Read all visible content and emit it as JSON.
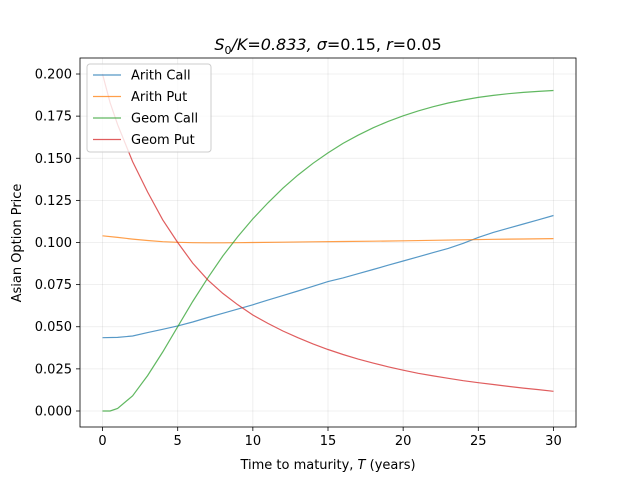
{
  "chart_data": {
    "type": "line",
    "title_parts": {
      "s": "S",
      "sub0": "0",
      "ratio": "/K=0.833, ",
      "sigma": "σ",
      "sigma_val": "=0.15, ",
      "r": "r",
      "r_val": "=0.05"
    },
    "xlabel_parts": {
      "text": "Time to maturity, ",
      "var": "T",
      "unit": " (years)"
    },
    "ylabel": "Asian Option Price",
    "xlim": [
      -1.5,
      31.5
    ],
    "ylim": [
      -0.0095,
      0.2095
    ],
    "x_ticks": [
      0,
      5,
      10,
      15,
      20,
      25,
      30
    ],
    "x_tick_labels": [
      "0",
      "5",
      "10",
      "15",
      "20",
      "25",
      "30"
    ],
    "y_ticks": [
      0.0,
      0.025,
      0.05,
      0.075,
      0.1,
      0.125,
      0.15,
      0.175,
      0.2
    ],
    "y_tick_labels": [
      "0.000",
      "0.025",
      "0.050",
      "0.075",
      "0.100",
      "0.125",
      "0.150",
      "0.175",
      "0.200"
    ],
    "grid": true,
    "legend_position": "top-left",
    "series": [
      {
        "name": "Arith Call",
        "color": "#1f77b4",
        "x": [
          0,
          1,
          2,
          3,
          4,
          5,
          6,
          7,
          8,
          9,
          10,
          11,
          12,
          13,
          14,
          15,
          16,
          17,
          18,
          19,
          20,
          21,
          22,
          23,
          24,
          25,
          26,
          27,
          28,
          29,
          30
        ],
        "y": [
          0.0435,
          0.0437,
          0.0445,
          0.0465,
          0.0485,
          0.0505,
          0.0528,
          0.0555,
          0.058,
          0.0605,
          0.063,
          0.0658,
          0.0685,
          0.0712,
          0.074,
          0.0768,
          0.079,
          0.0815,
          0.084,
          0.0865,
          0.089,
          0.0915,
          0.094,
          0.0965,
          0.0995,
          0.103,
          0.106,
          0.1085,
          0.111,
          0.1135,
          0.116
        ]
      },
      {
        "name": "Arith Put",
        "color": "#ff7f0e",
        "x": [
          0,
          1,
          2,
          3,
          4,
          5,
          6,
          7,
          8,
          9,
          10,
          12,
          14,
          16,
          18,
          20,
          22,
          24,
          26,
          28,
          30
        ],
        "y": [
          0.104,
          0.103,
          0.102,
          0.1012,
          0.1005,
          0.1001,
          0.0999,
          0.0998,
          0.0998,
          0.0999,
          0.1,
          0.1002,
          0.1004,
          0.1006,
          0.1008,
          0.101,
          0.1013,
          0.1016,
          0.1019,
          0.1021,
          0.1023
        ]
      },
      {
        "name": "Geom Call",
        "color": "#2ca02c",
        "x": [
          0,
          0.5,
          1,
          2,
          3,
          4,
          5,
          6,
          7,
          8,
          9,
          10,
          11,
          12,
          13,
          14,
          15,
          16,
          17,
          18,
          19,
          20,
          21,
          22,
          23,
          24,
          25,
          26,
          27,
          28,
          29,
          30
        ],
        "y": [
          0.0,
          0.0,
          0.0015,
          0.009,
          0.021,
          0.035,
          0.05,
          0.065,
          0.079,
          0.092,
          0.1035,
          0.114,
          0.1235,
          0.1322,
          0.14,
          0.147,
          0.1532,
          0.1588,
          0.1637,
          0.1681,
          0.1719,
          0.1752,
          0.1781,
          0.1806,
          0.1828,
          0.1846,
          0.1861,
          0.1873,
          0.1883,
          0.1891,
          0.1897,
          0.1902
        ]
      },
      {
        "name": "Geom Put",
        "color": "#d62728",
        "x": [
          0,
          0.5,
          1,
          2,
          3,
          4,
          5,
          6,
          7,
          8,
          9,
          10,
          11,
          12,
          13,
          14,
          15,
          16,
          17,
          18,
          19,
          20,
          21,
          22,
          23,
          24,
          25,
          26,
          27,
          28,
          29,
          30
        ],
        "y": [
          0.2,
          0.183,
          0.17,
          0.148,
          0.13,
          0.1135,
          0.1,
          0.0878,
          0.0778,
          0.0698,
          0.063,
          0.057,
          0.052,
          0.0475,
          0.0435,
          0.0398,
          0.0365,
          0.0335,
          0.0308,
          0.0284,
          0.0262,
          0.0242,
          0.0224,
          0.0208,
          0.0194,
          0.018,
          0.0168,
          0.0157,
          0.0146,
          0.0136,
          0.0127,
          0.0117
        ]
      }
    ]
  }
}
